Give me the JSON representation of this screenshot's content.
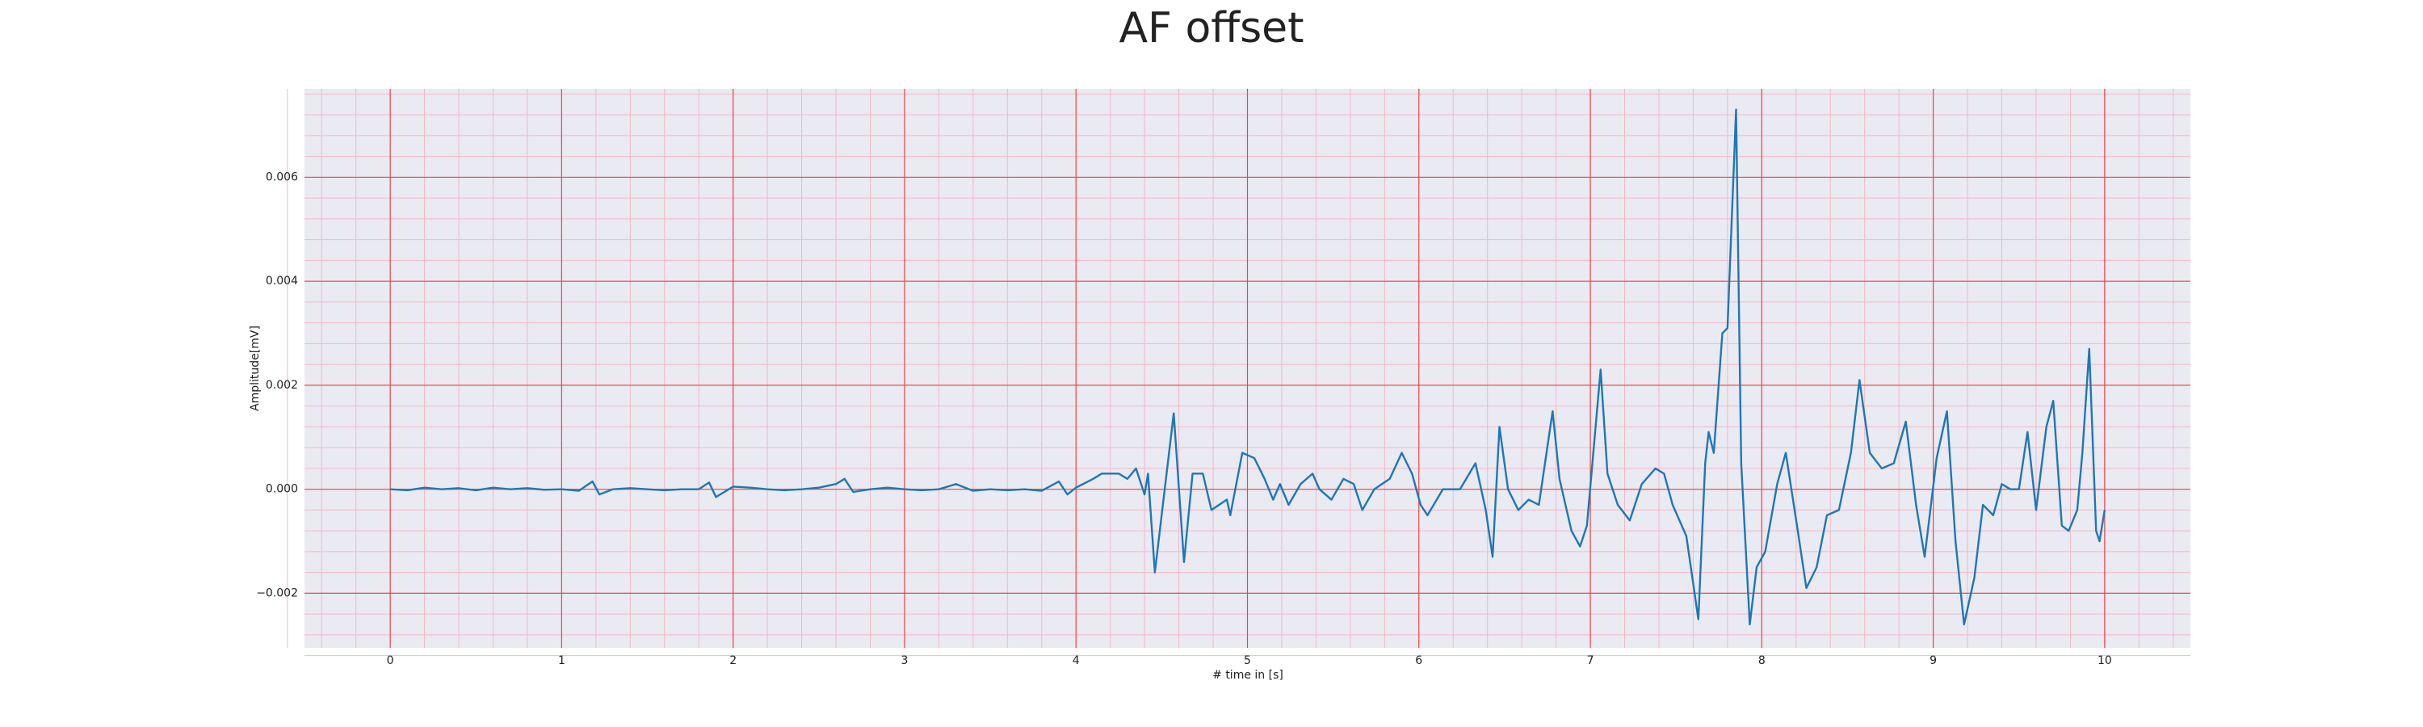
{
  "chart_data": {
    "type": "line",
    "title": "AF offset",
    "xlabel": "# time in [s]",
    "ylabel": "Amplitude[mV]",
    "grid": true,
    "minor_grid": true,
    "background": "#eaeaf2",
    "grid_color": "#ee4444",
    "minor_grid_color": "#f2b8c6",
    "xlim": [
      -0.5,
      10.5
    ],
    "xticks": [
      0,
      1,
      2,
      3,
      4,
      5,
      6,
      7,
      8,
      9,
      10
    ],
    "ylim": [
      -0.00305,
      0.0077
    ],
    "yticks": [
      {
        "value": -0.002,
        "label": "−0.002"
      },
      {
        "value": 0,
        "label": "0.000"
      },
      0.002,
      0.004,
      0.006
    ],
    "series": [
      {
        "name": "AF offset",
        "color": "#1f77b4",
        "x": [
          0,
          0.1,
          0.2,
          0.3,
          0.4,
          0.5,
          0.6,
          0.7,
          0.8,
          0.9,
          1.0,
          1.1,
          1.18,
          1.22,
          1.3,
          1.4,
          1.5,
          1.6,
          1.7,
          1.8,
          1.86,
          1.9,
          2.0,
          2.1,
          2.2,
          2.3,
          2.4,
          2.5,
          2.6,
          2.65,
          2.7,
          2.8,
          2.9,
          3.0,
          3.1,
          3.2,
          3.3,
          3.4,
          3.5,
          3.6,
          3.7,
          3.8,
          3.9,
          3.95,
          4.0,
          4.1,
          4.15,
          4.25,
          4.3,
          4.35,
          4.4,
          4.42,
          4.46,
          4.57,
          4.63,
          4.68,
          4.74,
          4.79,
          4.88,
          4.9,
          4.97,
          5.04,
          5.1,
          5.15,
          5.19,
          5.24,
          5.31,
          5.38,
          5.42,
          5.49,
          5.56,
          5.62,
          5.67,
          5.74,
          5.83,
          5.9,
          5.96,
          6.01,
          6.05,
          6.14,
          6.24,
          6.33,
          6.39,
          6.43,
          6.47,
          6.52,
          6.58,
          6.64,
          6.7,
          6.78,
          6.82,
          6.89,
          6.94,
          6.98,
          7.06,
          7.1,
          7.16,
          7.23,
          7.3,
          7.38,
          7.43,
          7.48,
          7.56,
          7.63,
          7.67,
          7.69,
          7.72,
          7.77,
          7.8,
          7.85,
          7.88,
          7.93,
          7.97,
          8.02,
          8.09,
          8.14,
          8.21,
          8.26,
          8.32,
          8.38,
          8.45,
          8.52,
          8.57,
          8.63,
          8.7,
          8.77,
          8.84,
          8.9,
          8.95,
          9.02,
          9.08,
          9.13,
          9.18,
          9.24,
          9.29,
          9.35,
          9.4,
          9.45,
          9.5,
          9.55,
          9.6,
          9.66,
          9.7,
          9.75,
          9.79,
          9.84,
          9.87,
          9.91,
          9.95,
          9.97,
          10.0
        ],
        "values": [
          0,
          -2e-05,
          3e-05,
          0,
          2e-05,
          -2e-05,
          3e-05,
          0,
          2e-05,
          -1e-05,
          0,
          -3e-05,
          0.00015,
          -0.0001,
          0,
          2e-05,
          0,
          -2e-05,
          0,
          0,
          0.00013,
          -0.00015,
          5e-05,
          3e-05,
          0,
          -2e-05,
          0,
          3e-05,
          0.0001,
          0.0002,
          -5e-05,
          0,
          3e-05,
          0,
          -2e-05,
          0,
          0.0001,
          -3e-05,
          0,
          -2e-05,
          0,
          -3e-05,
          0.00015,
          -0.0001,
          3e-05,
          0.0002,
          0.0003,
          0.0003,
          0.0002,
          0.0004,
          -0.0001,
          0.0003,
          -0.0016,
          0.00146,
          -0.0014,
          0.0003,
          0.0003,
          -0.0004,
          -0.0002,
          -0.0005,
          0.0007,
          0.0006,
          0.0002,
          -0.0002,
          0.0001,
          -0.0003,
          0.0001,
          0.0003,
          0,
          -0.0002,
          0.0002,
          0.0001,
          -0.0004,
          0,
          0.0002,
          0.0007,
          0.0003,
          -0.0003,
          -0.0005,
          0,
          0,
          0.0005,
          -0.0004,
          -0.0013,
          0.0012,
          0,
          -0.0004,
          -0.0002,
          -0.0003,
          0.0015,
          0.0002,
          -0.0008,
          -0.0011,
          -0.0007,
          0.0023,
          0.0003,
          -0.0003,
          -0.0006,
          0.0001,
          0.0004,
          0.0003,
          -0.0003,
          -0.0009,
          -0.0025,
          0.0005,
          0.0011,
          0.0007,
          0.003,
          0.0031,
          0.0073,
          0.0005,
          -0.0026,
          -0.0015,
          -0.0012,
          0.0001,
          0.0007,
          -0.0008,
          -0.0019,
          -0.0015,
          -0.0005,
          -0.0004,
          0.0007,
          0.0021,
          0.0007,
          0.0004,
          0.0005,
          0.0013,
          -0.0003,
          -0.0013,
          0.0006,
          0.0015,
          -0.001,
          -0.0026,
          -0.0017,
          -0.0003,
          -0.0005,
          0.0001,
          0,
          0,
          0.0011,
          -0.0004,
          0.0012,
          0.0017,
          -0.0007,
          -0.0008,
          -0.0004,
          0.0007,
          0.0027,
          -0.0008,
          -0.001,
          -0.0004
        ]
      }
    ]
  }
}
